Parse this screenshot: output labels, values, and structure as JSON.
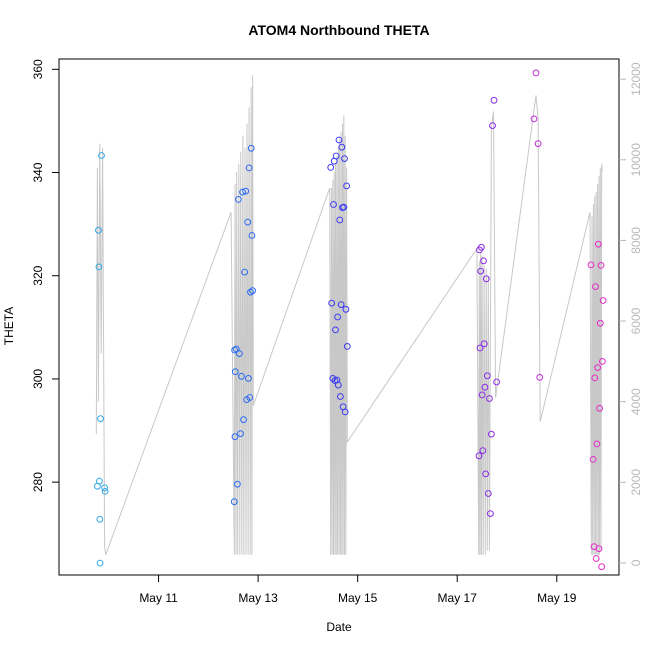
{
  "chart_data": {
    "type": "scatter",
    "title": "ATOM4 Northbound THETA",
    "xlabel": "Date",
    "ylabel": "THETA",
    "xlim": [
      "2023-05-09 00:00",
      "2023-05-20 06:00"
    ],
    "ylim": [
      262,
      362
    ],
    "y_ticks": [
      280,
      300,
      320,
      340,
      360
    ],
    "x_ticks": [
      {
        "label": "May 11",
        "date": "2023-05-11 00:00"
      },
      {
        "label": "May 13",
        "date": "2023-05-13 00:00"
      },
      {
        "label": "May 15",
        "date": "2023-05-15 00:00"
      },
      {
        "label": "May 17",
        "date": "2023-05-17 00:00"
      },
      {
        "label": "May 19",
        "date": "2023-05-19 00:00"
      }
    ],
    "y2lim": [
      -300,
      12500
    ],
    "y2_ticks": [
      0,
      2000,
      4000,
      6000,
      8000,
      10000,
      12000
    ],
    "grid": false,
    "points": [
      {
        "date": "2023-05-09 18:30",
        "theta": 279.2,
        "color": "#33a9e6"
      },
      {
        "date": "2023-05-09 19:00",
        "theta": 328.8,
        "color": "#33a9e6"
      },
      {
        "date": "2023-05-09 19:15",
        "theta": 321.7,
        "color": "#33a9e6"
      },
      {
        "date": "2023-05-09 19:30",
        "theta": 280.2,
        "color": "#33a9e6"
      },
      {
        "date": "2023-05-09 19:40",
        "theta": 272.8,
        "color": "#33a9e6"
      },
      {
        "date": "2023-05-09 19:50",
        "theta": 264.3,
        "color": "#33a9e6"
      },
      {
        "date": "2023-05-09 20:00",
        "theta": 292.3,
        "color": "#33a9e6"
      },
      {
        "date": "2023-05-09 20:30",
        "theta": 343.3,
        "color": "#33a9e6"
      },
      {
        "date": "2023-05-09 22:00",
        "theta": 278.9,
        "color": "#33a9e6"
      },
      {
        "date": "2023-05-09 22:15",
        "theta": 278.2,
        "color": "#33a9e6"
      },
      {
        "date": "2023-05-12 12:30",
        "theta": 276.2,
        "color": "#2b6cf0"
      },
      {
        "date": "2023-05-12 12:40",
        "theta": 305.6,
        "color": "#2b6cf0"
      },
      {
        "date": "2023-05-12 12:50",
        "theta": 288.8,
        "color": "#2b6cf0"
      },
      {
        "date": "2023-05-12 13:00",
        "theta": 301.4,
        "color": "#2b6cf0"
      },
      {
        "date": "2023-05-12 13:30",
        "theta": 305.8,
        "color": "#2b6cf0"
      },
      {
        "date": "2023-05-12 14:00",
        "theta": 279.6,
        "color": "#2b6cf0"
      },
      {
        "date": "2023-05-12 14:30",
        "theta": 334.8,
        "color": "#2b6cf0"
      },
      {
        "date": "2023-05-12 15:00",
        "theta": 304.9,
        "color": "#2b6cf0"
      },
      {
        "date": "2023-05-12 15:30",
        "theta": 289.4,
        "color": "#2b6cf0"
      },
      {
        "date": "2023-05-12 16:00",
        "theta": 300.5,
        "color": "#2b6cf0"
      },
      {
        "date": "2023-05-12 16:30",
        "theta": 336.2,
        "color": "#2b6cf0"
      },
      {
        "date": "2023-05-12 17:00",
        "theta": 292.1,
        "color": "#2b6cf0"
      },
      {
        "date": "2023-05-12 17:30",
        "theta": 320.7,
        "color": "#2b6cf0"
      },
      {
        "date": "2023-05-12 18:00",
        "theta": 336.4,
        "color": "#2b6cf0"
      },
      {
        "date": "2023-05-12 18:30",
        "theta": 296.0,
        "color": "#2b6cf0"
      },
      {
        "date": "2023-05-12 19:00",
        "theta": 330.4,
        "color": "#2b6cf0"
      },
      {
        "date": "2023-05-12 19:20",
        "theta": 300.1,
        "color": "#2b6cf0"
      },
      {
        "date": "2023-05-12 19:40",
        "theta": 340.9,
        "color": "#2b6cf0"
      },
      {
        "date": "2023-05-12 20:00",
        "theta": 296.4,
        "color": "#2b6cf0"
      },
      {
        "date": "2023-05-12 20:20",
        "theta": 316.8,
        "color": "#2b6cf0"
      },
      {
        "date": "2023-05-12 20:40",
        "theta": 344.7,
        "color": "#2b6cf0"
      },
      {
        "date": "2023-05-12 21:00",
        "theta": 327.8,
        "color": "#2b6cf0"
      },
      {
        "date": "2023-05-12 21:20",
        "theta": 317.1,
        "color": "#2b6cf0"
      },
      {
        "date": "2023-05-14 11:00",
        "theta": 341.0,
        "color": "#3a3af0"
      },
      {
        "date": "2023-05-14 11:30",
        "theta": 314.7,
        "color": "#3a3af0"
      },
      {
        "date": "2023-05-14 12:00",
        "theta": 300.1,
        "color": "#3a3af0"
      },
      {
        "date": "2023-05-14 12:20",
        "theta": 333.8,
        "color": "#3a3af0"
      },
      {
        "date": "2023-05-14 12:40",
        "theta": 342.2,
        "color": "#3a3af0"
      },
      {
        "date": "2023-05-14 13:00",
        "theta": 299.7,
        "color": "#3a3af0"
      },
      {
        "date": "2023-05-14 13:20",
        "theta": 309.5,
        "color": "#3a3af0"
      },
      {
        "date": "2023-05-14 13:40",
        "theta": 343.2,
        "color": "#3a3af0"
      },
      {
        "date": "2023-05-14 14:00",
        "theta": 299.8,
        "color": "#3a3af0"
      },
      {
        "date": "2023-05-14 14:20",
        "theta": 312.0,
        "color": "#3a3af0"
      },
      {
        "date": "2023-05-14 14:40",
        "theta": 298.8,
        "color": "#3a3af0"
      },
      {
        "date": "2023-05-14 15:00",
        "theta": 346.3,
        "color": "#3a3af0"
      },
      {
        "date": "2023-05-14 15:20",
        "theta": 330.8,
        "color": "#3a3af0"
      },
      {
        "date": "2023-05-14 15:40",
        "theta": 296.6,
        "color": "#3a3af0"
      },
      {
        "date": "2023-05-14 16:00",
        "theta": 314.4,
        "color": "#3a3af0"
      },
      {
        "date": "2023-05-14 16:20",
        "theta": 344.9,
        "color": "#3a3af0"
      },
      {
        "date": "2023-05-14 16:40",
        "theta": 333.2,
        "color": "#3a3af0"
      },
      {
        "date": "2023-05-14 17:00",
        "theta": 294.6,
        "color": "#3a3af0"
      },
      {
        "date": "2023-05-14 17:20",
        "theta": 333.3,
        "color": "#3a3af0"
      },
      {
        "date": "2023-05-14 17:40",
        "theta": 342.7,
        "color": "#3a3af0"
      },
      {
        "date": "2023-05-14 18:00",
        "theta": 293.6,
        "color": "#3a3af0"
      },
      {
        "date": "2023-05-14 18:20",
        "theta": 313.5,
        "color": "#3a3af0"
      },
      {
        "date": "2023-05-14 18:40",
        "theta": 337.4,
        "color": "#3a3af0"
      },
      {
        "date": "2023-05-14 19:00",
        "theta": 306.3,
        "color": "#3a3af0"
      },
      {
        "date": "2023-05-17 10:30",
        "theta": 285.1,
        "color": "#8a2be6"
      },
      {
        "date": "2023-05-17 10:45",
        "theta": 325.0,
        "color": "#8a2be6"
      },
      {
        "date": "2023-05-17 11:00",
        "theta": 306.0,
        "color": "#8a2be6"
      },
      {
        "date": "2023-05-17 11:20",
        "theta": 320.9,
        "color": "#8a2be6"
      },
      {
        "date": "2023-05-17 11:40",
        "theta": 325.5,
        "color": "#8a2be6"
      },
      {
        "date": "2023-05-17 12:00",
        "theta": 296.9,
        "color": "#8a2be6"
      },
      {
        "date": "2023-05-17 12:20",
        "theta": 286.1,
        "color": "#8a2be6"
      },
      {
        "date": "2023-05-17 12:40",
        "theta": 322.9,
        "color": "#8a2be6"
      },
      {
        "date": "2023-05-17 13:00",
        "theta": 306.8,
        "color": "#8a2be6"
      },
      {
        "date": "2023-05-17 13:20",
        "theta": 298.4,
        "color": "#8a2be6"
      },
      {
        "date": "2023-05-17 13:40",
        "theta": 281.6,
        "color": "#8a2be6"
      },
      {
        "date": "2023-05-17 14:00",
        "theta": 319.4,
        "color": "#8a2be6"
      },
      {
        "date": "2023-05-17 14:30",
        "theta": 300.6,
        "color": "#8a2be6"
      },
      {
        "date": "2023-05-17 15:00",
        "theta": 277.8,
        "color": "#8a2be6"
      },
      {
        "date": "2023-05-17 15:30",
        "theta": 296.2,
        "color": "#8a2be6"
      },
      {
        "date": "2023-05-17 16:00",
        "theta": 273.9,
        "color": "#8a2be6"
      },
      {
        "date": "2023-05-17 16:30",
        "theta": 289.3,
        "color": "#8a2be6"
      },
      {
        "date": "2023-05-17 17:00",
        "theta": 349.1,
        "color": "#8a2be6"
      },
      {
        "date": "2023-05-17 17:45",
        "theta": 354.0,
        "color": "#8a2be6"
      },
      {
        "date": "2023-05-17 19:00",
        "theta": 299.4,
        "color": "#8a2be6"
      },
      {
        "date": "2023-05-18 13:00",
        "theta": 350.4,
        "color": "#c22bd8"
      },
      {
        "date": "2023-05-18 14:00",
        "theta": 359.3,
        "color": "#c22bd8"
      },
      {
        "date": "2023-05-18 15:00",
        "theta": 345.6,
        "color": "#c22bd8"
      },
      {
        "date": "2023-05-18 15:45",
        "theta": 300.3,
        "color": "#c22bd8"
      },
      {
        "date": "2023-05-19 16:30",
        "theta": 322.1,
        "color": "#e62bc8"
      },
      {
        "date": "2023-05-19 17:30",
        "theta": 284.4,
        "color": "#e62bc8"
      },
      {
        "date": "2023-05-19 18:00",
        "theta": 267.5,
        "color": "#e62bc8"
      },
      {
        "date": "2023-05-19 18:20",
        "theta": 300.2,
        "color": "#e62bc8"
      },
      {
        "date": "2023-05-19 18:40",
        "theta": 317.9,
        "color": "#e62bc8"
      },
      {
        "date": "2023-05-19 19:00",
        "theta": 265.2,
        "color": "#e62bc8"
      },
      {
        "date": "2023-05-19 19:20",
        "theta": 287.4,
        "color": "#e62bc8"
      },
      {
        "date": "2023-05-19 19:40",
        "theta": 302.2,
        "color": "#e62bc8"
      },
      {
        "date": "2023-05-19 20:00",
        "theta": 326.1,
        "color": "#e62bc8"
      },
      {
        "date": "2023-05-19 20:20",
        "theta": 267.1,
        "color": "#e62bc8"
      },
      {
        "date": "2023-05-19 20:40",
        "theta": 294.3,
        "color": "#e62bc8"
      },
      {
        "date": "2023-05-19 21:00",
        "theta": 310.8,
        "color": "#e62bc8"
      },
      {
        "date": "2023-05-19 21:20",
        "theta": 322.0,
        "color": "#e62bc8"
      },
      {
        "date": "2023-05-19 21:40",
        "theta": 263.6,
        "color": "#e62bc8"
      },
      {
        "date": "2023-05-19 22:00",
        "theta": 303.4,
        "color": "#e62bc8"
      },
      {
        "date": "2023-05-19 22:20",
        "theta": 315.2,
        "color": "#e62bc8"
      }
    ],
    "line_series": {
      "color": "#c8c8c8",
      "axis": "right",
      "points": [
        [
          "2023-05-09 18:00",
          3200
        ],
        [
          "2023-05-09 18:30",
          9800
        ],
        [
          "2023-05-09 19:00",
          4000
        ],
        [
          "2023-05-09 19:40",
          10400
        ],
        [
          "2023-05-09 20:20",
          5200
        ],
        [
          "2023-05-09 21:00",
          10300
        ],
        [
          "2023-05-09 22:00",
          400
        ],
        [
          "2023-05-09 22:30",
          200
        ],
        [
          "2023-05-12 11:00",
          8700
        ],
        [
          "2023-05-12 12:30",
          200
        ],
        [
          "2023-05-12 12:50",
          9400
        ],
        [
          "2023-05-12 13:20",
          200
        ],
        [
          "2023-05-12 13:40",
          9700
        ],
        [
          "2023-05-12 14:10",
          200
        ],
        [
          "2023-05-12 14:40",
          9900
        ],
        [
          "2023-05-12 15:10",
          200
        ],
        [
          "2023-05-12 15:40",
          10200
        ],
        [
          "2023-05-12 16:10",
          200
        ],
        [
          "2023-05-12 16:40",
          10600
        ],
        [
          "2023-05-12 17:10",
          200
        ],
        [
          "2023-05-12 17:40",
          10300
        ],
        [
          "2023-05-12 18:10",
          200
        ],
        [
          "2023-05-12 18:40",
          10900
        ],
        [
          "2023-05-12 19:10",
          200
        ],
        [
          "2023-05-12 19:40",
          11300
        ],
        [
          "2023-05-12 20:10",
          200
        ],
        [
          "2023-05-12 20:40",
          11800
        ],
        [
          "2023-05-12 21:00",
          200
        ],
        [
          "2023-05-12 21:20",
          12100
        ],
        [
          "2023-05-12 21:40",
          3900
        ],
        [
          "2023-05-14 10:30",
          9300
        ],
        [
          "2023-05-14 11:00",
          200
        ],
        [
          "2023-05-14 11:20",
          9300
        ],
        [
          "2023-05-14 11:40",
          200
        ],
        [
          "2023-05-14 12:00",
          9500
        ],
        [
          "2023-05-14 12:20",
          200
        ],
        [
          "2023-05-14 12:40",
          9700
        ],
        [
          "2023-05-14 13:00",
          200
        ],
        [
          "2023-05-14 13:20",
          9900
        ],
        [
          "2023-05-14 13:40",
          200
        ],
        [
          "2023-05-14 14:00",
          10100
        ],
        [
          "2023-05-14 14:20",
          200
        ],
        [
          "2023-05-14 14:40",
          10300
        ],
        [
          "2023-05-14 15:00",
          200
        ],
        [
          "2023-05-14 15:20",
          10500
        ],
        [
          "2023-05-14 15:40",
          200
        ],
        [
          "2023-05-14 16:00",
          10700
        ],
        [
          "2023-05-14 16:20",
          200
        ],
        [
          "2023-05-14 16:40",
          10900
        ],
        [
          "2023-05-14 17:00",
          200
        ],
        [
          "2023-05-14 17:20",
          11100
        ],
        [
          "2023-05-14 17:40",
          200
        ],
        [
          "2023-05-14 18:00",
          10600
        ],
        [
          "2023-05-14 18:20",
          200
        ],
        [
          "2023-05-14 18:40",
          9800
        ],
        [
          "2023-05-14 19:00",
          3000
        ],
        [
          "2023-05-17 09:30",
          7800
        ],
        [
          "2023-05-17 10:20",
          200
        ],
        [
          "2023-05-17 10:40",
          7500
        ],
        [
          "2023-05-17 11:00",
          200
        ],
        [
          "2023-05-17 11:20",
          7700
        ],
        [
          "2023-05-17 11:40",
          200
        ],
        [
          "2023-05-17 12:00",
          7600
        ],
        [
          "2023-05-17 12:30",
          200
        ],
        [
          "2023-05-17 13:00",
          7400
        ],
        [
          "2023-05-17 13:30",
          200
        ],
        [
          "2023-05-17 14:00",
          7300
        ],
        [
          "2023-05-17 14:30",
          300
        ],
        [
          "2023-05-17 15:00",
          7100
        ],
        [
          "2023-05-17 15:30",
          300
        ],
        [
          "2023-05-17 16:30",
          10800
        ],
        [
          "2023-05-17 17:30",
          11200
        ],
        [
          "2023-05-17 18:30",
          4100
        ],
        [
          "2023-05-18 14:00",
          11600
        ],
        [
          "2023-05-18 15:00",
          11000
        ],
        [
          "2023-05-18 16:00",
          3500
        ],
        [
          "2023-05-19 16:00",
          8700
        ],
        [
          "2023-05-19 16:40",
          200
        ],
        [
          "2023-05-19 17:00",
          8600
        ],
        [
          "2023-05-19 17:20",
          200
        ],
        [
          "2023-05-19 17:40",
          8900
        ],
        [
          "2023-05-19 18:00",
          200
        ],
        [
          "2023-05-19 18:20",
          9100
        ],
        [
          "2023-05-19 18:40",
          200
        ],
        [
          "2023-05-19 19:00",
          9200
        ],
        [
          "2023-05-19 19:20",
          200
        ],
        [
          "2023-05-19 19:40",
          9400
        ],
        [
          "2023-05-19 20:00",
          200
        ],
        [
          "2023-05-19 20:20",
          9600
        ],
        [
          "2023-05-19 20:40",
          200
        ],
        [
          "2023-05-19 21:00",
          9800
        ],
        [
          "2023-05-19 21:20",
          300
        ],
        [
          "2023-05-19 21:40",
          9900
        ],
        [
          "2023-05-19 22:00",
          9700
        ]
      ]
    }
  }
}
